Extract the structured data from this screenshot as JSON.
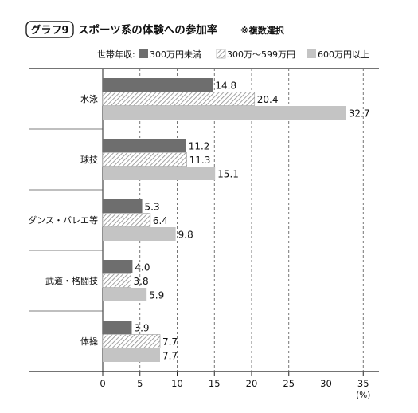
{
  "header": {
    "badge": "グラフ9",
    "title": "スポーツ系の体験への参加率",
    "note": "※複数選択"
  },
  "legend": {
    "prefix": "世帯年収:"
  },
  "chart_data": {
    "type": "bar",
    "orientation": "horizontal",
    "categories": [
      "水泳",
      "球技",
      "ダンス・バレエ等",
      "武道・格闘技",
      "体操"
    ],
    "series": [
      {
        "name": "300万円未満",
        "values": [
          14.8,
          11.2,
          5.3,
          4.0,
          3.9
        ],
        "color": "#6e6e6e",
        "pattern": "solid"
      },
      {
        "name": "300万～599万円",
        "values": [
          20.4,
          11.3,
          6.4,
          3.8,
          7.7
        ],
        "color": "#ffffff",
        "pattern": "hatch"
      },
      {
        "name": "600万円以上",
        "values": [
          32.7,
          15.1,
          9.8,
          5.9,
          7.7
        ],
        "color": "#c4c4c4",
        "pattern": "solid"
      }
    ],
    "value_labels": [
      [
        "14.8",
        "11.2",
        "5.3",
        "4.0",
        "3.9"
      ],
      [
        "20.4",
        "11.3",
        "6.4",
        "3.8",
        "7.7"
      ],
      [
        "32.7",
        "15.1",
        "9.8",
        "5.9",
        "7.7"
      ]
    ],
    "xlim": [
      0,
      35
    ],
    "xticks": [
      0,
      5,
      10,
      15,
      20,
      25,
      30,
      35
    ],
    "x_unit": "(%)",
    "grid": "dashed-vertical",
    "legend_position": "top"
  }
}
